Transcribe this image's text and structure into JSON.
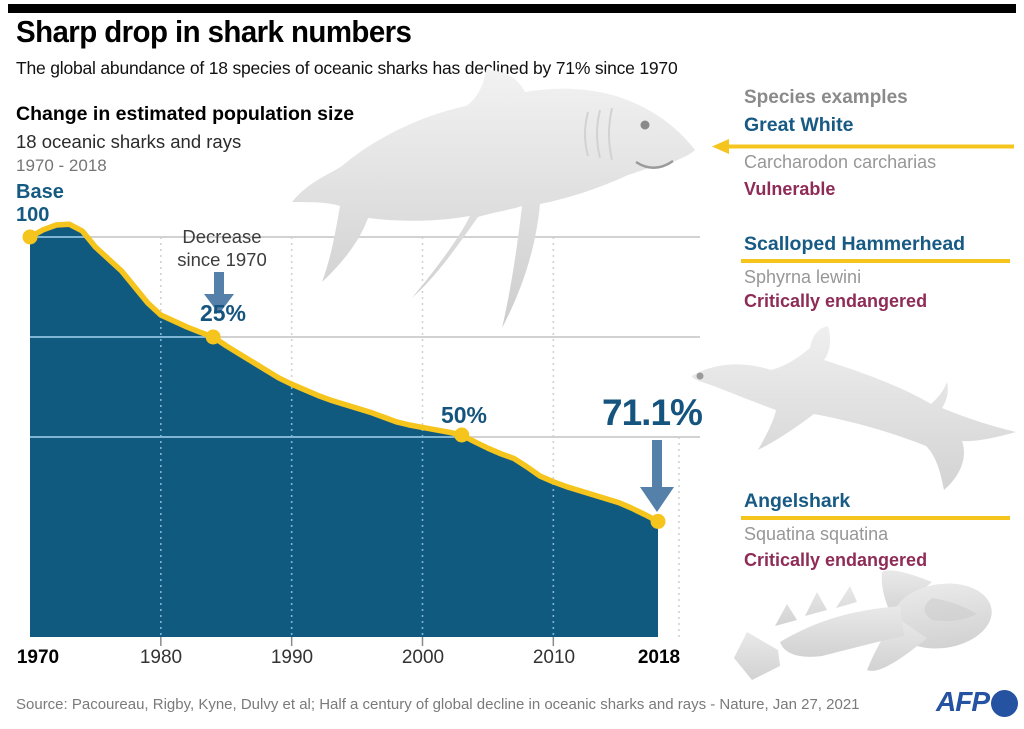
{
  "header": {
    "title": "Sharp drop in shark numbers",
    "subtitle": "The global abundance of 18 species of oceanic sharks has declined by 71% since 1970"
  },
  "chart": {
    "heading": "Change in estimated population size",
    "subheading": "18 oceanic sharks and rays",
    "period": "1970 - 2018",
    "base_label_line1": "Base",
    "base_label_line2": "100",
    "annotations": {
      "decrease_line1": "Decrease",
      "decrease_line2": "since 1970",
      "pct25": "25%",
      "pct50": "50%",
      "pct71": "71.1%"
    },
    "x_ticks": [
      "1970",
      "1980",
      "1990",
      "2000",
      "2010",
      "2018"
    ]
  },
  "chart_data": {
    "type": "area",
    "title": "Change in estimated population size",
    "x_start": 1970,
    "x_end": 2018,
    "x_interval": 1,
    "values": [
      100,
      101.8,
      103,
      103.2,
      101.5,
      97.5,
      94.5,
      91.5,
      87.5,
      83.5,
      80.5,
      79,
      77.5,
      76.2,
      75,
      72.8,
      70.8,
      68.8,
      66.8,
      64.8,
      63.2,
      61.8,
      60.4,
      59.2,
      58.2,
      57.2,
      56.2,
      55,
      53.8,
      53,
      52.4,
      51.8,
      51.2,
      50.5,
      48.8,
      47.2,
      45.8,
      44.6,
      42.5,
      40.2,
      38.8,
      37.6,
      36.6,
      35.6,
      34.6,
      33.6,
      32.2,
      30.6,
      28.9
    ],
    "ylim": [
      0,
      110
    ],
    "baseline_value": 100,
    "markers": [
      {
        "year": 1970,
        "value": 100,
        "label": "Base 100"
      },
      {
        "year": 1984,
        "value": 75,
        "label": "25%"
      },
      {
        "year": 2003,
        "value": 50.5,
        "label": "50%"
      },
      {
        "year": 2018,
        "value": 28.9,
        "label": "71.1%"
      }
    ],
    "gridlines_h_values": [
      100,
      75,
      50
    ],
    "gridlines_v_years": [
      1980,
      1990,
      2000,
      2010
    ],
    "axis_tick_years": [
      1980,
      1990,
      2000,
      2010
    ],
    "grid_on": true,
    "colors": {
      "fill": "#115a7f",
      "line": "#f5c41d",
      "grid_light": "#d2d2d2",
      "grid_on_fill": "#7fb5d4",
      "tick": "#8a8a8a",
      "accent_teal": "#15547e",
      "accent_magenta": "#8e2b57",
      "arrow_blue": "#5580a9",
      "afp_blue": "#2553a2"
    }
  },
  "species_panel": {
    "heading": "Species examples",
    "species": [
      {
        "name": "Great White",
        "latin": "Carcharodon carcharias",
        "status": "Vulnerable"
      },
      {
        "name": "Scalloped Hammerhead",
        "latin": "Sphyrna lewini",
        "status": "Critically endangered"
      },
      {
        "name": "Angelshark",
        "latin": "Squatina squatina",
        "status": "Critically endangered"
      }
    ]
  },
  "footer": {
    "source": "Source: Pacoureau, Rigby, Kyne, Dulvy et al; Half a century of global decline in oceanic sharks and rays - Nature, Jan 27, 2021",
    "logo_text": "AFP"
  }
}
